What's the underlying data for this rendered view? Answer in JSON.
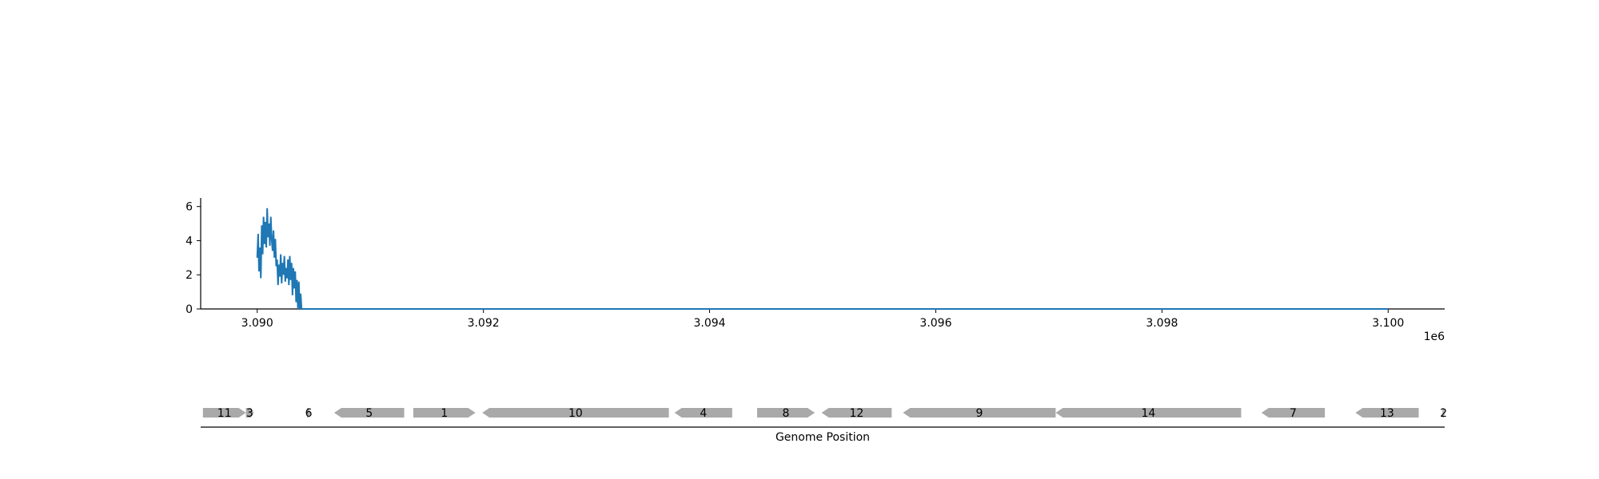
{
  "chart_data": [
    {
      "type": "line",
      "title": "",
      "xlabel": "",
      "ylabel": "",
      "x_offset_label": "1e6",
      "xlim": [
        3089500,
        3100500
      ],
      "ylim": [
        0,
        6.5
      ],
      "x_ticks": [
        3090000,
        3092000,
        3094000,
        3096000,
        3098000,
        3100000
      ],
      "x_tick_labels": [
        "3.090",
        "3.092",
        "3.094",
        "3.096",
        "3.098",
        "3.100"
      ],
      "y_ticks": [
        0,
        2,
        4,
        6
      ],
      "y_tick_labels": [
        "0",
        "2",
        "4",
        "6"
      ],
      "grid": false,
      "color": "#1f77b4",
      "series": [
        {
          "x": [
            3090000,
            3090008,
            3090016,
            3090024,
            3090032,
            3090040,
            3090048,
            3090056,
            3090064,
            3090072,
            3090080,
            3090088,
            3090096,
            3090104,
            3090112,
            3090120,
            3090128,
            3090136,
            3090144,
            3090152,
            3090160,
            3090168,
            3090176,
            3090184,
            3090192,
            3090200,
            3090208,
            3090216,
            3090224,
            3090232,
            3090240,
            3090248,
            3090256,
            3090264,
            3090272,
            3090280,
            3090288,
            3090296,
            3090304,
            3090312,
            3090320,
            3090328,
            3090336,
            3090344,
            3090352,
            3090360,
            3090368,
            3090376,
            3090384,
            3090392,
            3090400,
            3090410,
            3090420,
            3090440,
            3090500,
            3091000,
            3092000,
            3093000,
            3094000,
            3095000,
            3096000,
            3097000,
            3098000,
            3099000,
            3100000
          ],
          "y": [
            3.0,
            4.4,
            2.2,
            3.6,
            1.8,
            4.9,
            3.2,
            5.4,
            3.8,
            5.1,
            3.6,
            5.9,
            4.2,
            5.0,
            3.7,
            5.4,
            4.1,
            3.4,
            4.6,
            3.0,
            4.1,
            2.5,
            2.9,
            1.4,
            2.6,
            1.9,
            3.2,
            1.5,
            2.7,
            2.0,
            3.1,
            1.6,
            2.4,
            1.8,
            2.9,
            1.4,
            3.1,
            1.7,
            2.7,
            0.8,
            2.4,
            1.2,
            2.2,
            0.4,
            1.7,
            0.0,
            1.6,
            0.0,
            0.9,
            0.0,
            0.0,
            0.0,
            0.0,
            0.0,
            0.0,
            0.0,
            0.0,
            0.0,
            0.0,
            0.0,
            0.0,
            0.0,
            0.0,
            0.0,
            0.0
          ]
        }
      ]
    },
    {
      "type": "gene-map",
      "xlabel": "Genome Position",
      "xlim": [
        3089500,
        3100500
      ],
      "feature_color": "#a9a9a9",
      "genes": [
        {
          "label": "11",
          "start": 3089520,
          "end": 3089900,
          "strand": "+"
        },
        {
          "label": "3",
          "start": 3089900,
          "end": 3089970,
          "strand": "+"
        },
        {
          "label": "6",
          "start": 3090440,
          "end": 3090470,
          "strand": "+"
        },
        {
          "label": "5",
          "start": 3090680,
          "end": 3091300,
          "strand": "-"
        },
        {
          "label": "1",
          "start": 3091380,
          "end": 3091930,
          "strand": "+"
        },
        {
          "label": "10",
          "start": 3091990,
          "end": 3093640,
          "strand": "-"
        },
        {
          "label": "4",
          "start": 3093690,
          "end": 3094200,
          "strand": "-"
        },
        {
          "label": "8",
          "start": 3094420,
          "end": 3094930,
          "strand": "+"
        },
        {
          "label": "12",
          "start": 3094990,
          "end": 3095610,
          "strand": "-"
        },
        {
          "label": "9",
          "start": 3095710,
          "end": 3097060,
          "strand": "-"
        },
        {
          "label": "14",
          "start": 3097060,
          "end": 3098700,
          "strand": "-"
        },
        {
          "label": "7",
          "start": 3098880,
          "end": 3099440,
          "strand": "-"
        },
        {
          "label": "13",
          "start": 3099710,
          "end": 3100270,
          "strand": "-"
        },
        {
          "label": "2",
          "start": 3100480,
          "end": 3100500,
          "strand": "+"
        }
      ]
    }
  ]
}
